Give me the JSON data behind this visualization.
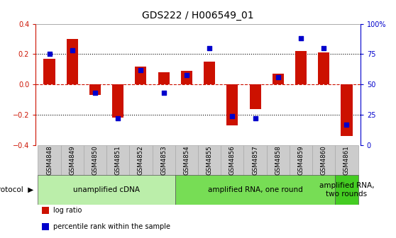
{
  "title": "GDS222 / H006549_01",
  "samples": [
    "GSM4848",
    "GSM4849",
    "GSM4850",
    "GSM4851",
    "GSM4852",
    "GSM4853",
    "GSM4854",
    "GSM4855",
    "GSM4856",
    "GSM4857",
    "GSM4858",
    "GSM4859",
    "GSM4860",
    "GSM4861"
  ],
  "log_ratio": [
    0.17,
    0.3,
    -0.07,
    -0.22,
    0.12,
    0.08,
    0.09,
    0.15,
    -0.27,
    -0.16,
    0.07,
    0.22,
    0.21,
    -0.34
  ],
  "percentile": [
    75,
    78,
    43,
    22,
    62,
    43,
    58,
    80,
    24,
    22,
    56,
    88,
    80,
    17
  ],
  "ylim_left": [
    -0.4,
    0.4
  ],
  "ylim_right": [
    0,
    100
  ],
  "yticks_left": [
    -0.4,
    -0.2,
    0.0,
    0.2,
    0.4
  ],
  "yticks_right": [
    0,
    25,
    50,
    75,
    100
  ],
  "ytick_labels_right": [
    "0",
    "25",
    "50",
    "75",
    "100%"
  ],
  "bar_color": "#cc1100",
  "dot_color": "#0000cc",
  "zero_line_color": "#cc1100",
  "grid_color": "#000000",
  "protocol_groups": [
    {
      "label": "unamplified cDNA",
      "start": 0,
      "end": 5,
      "color": "#bbeeaa"
    },
    {
      "label": "amplified RNA, one round",
      "start": 6,
      "end": 12,
      "color": "#77dd55"
    },
    {
      "label": "amplified RNA,\ntwo rounds",
      "start": 13,
      "end": 13,
      "color": "#44cc22"
    }
  ],
  "legend_items": [
    {
      "color": "#cc1100",
      "label": "log ratio"
    },
    {
      "color": "#0000cc",
      "label": "percentile rank within the sample"
    }
  ],
  "bar_width": 0.5,
  "sample_box_color": "#cccccc",
  "sample_box_edge": "#aaaaaa",
  "title_fontsize": 10,
  "tick_fontsize": 7,
  "label_fontsize": 7,
  "proto_fontsize": 7.5
}
